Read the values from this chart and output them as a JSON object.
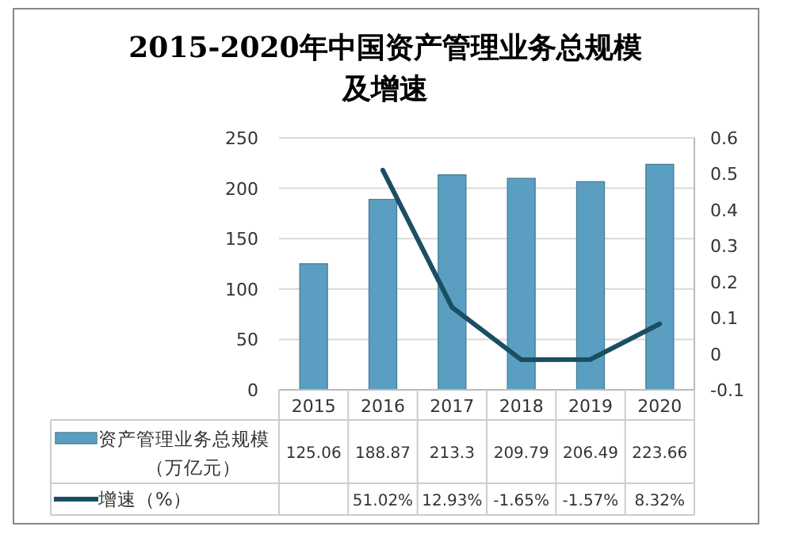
{
  "chart_data": {
    "type": "bar",
    "title": "2015-2020年中国资产管理业务总规模及增速",
    "categories": [
      "2015",
      "2016",
      "2017",
      "2018",
      "2019",
      "2020"
    ],
    "series": [
      {
        "name": "资产管理业务总规模（万亿元）",
        "color": "#5a9fc2",
        "values": [
          125.06,
          188.87,
          213.3,
          209.79,
          206.49,
          223.66
        ],
        "value_labels": [
          "125.06",
          "188.87",
          "213.3",
          "209.79",
          "206.49",
          "223.66"
        ]
      },
      {
        "name": "增速（%）",
        "type": "line",
        "axis": "y2",
        "color": "#1a4f63",
        "values": [
          null,
          0.5102,
          0.1293,
          -0.0165,
          -0.0157,
          0.0832
        ],
        "value_labels": [
          null,
          "51.02%",
          "12.93%",
          "-1.65%",
          "-1.57%",
          "8.32%"
        ]
      }
    ],
    "ylim": [
      0,
      250
    ],
    "yticks": [
      0,
      50,
      100,
      150,
      200,
      250
    ],
    "y2lim": [
      -0.1,
      0.6
    ],
    "y2ticks": [
      -0.1,
      0,
      0.1,
      0.2,
      0.3,
      0.4,
      0.5,
      0.6
    ],
    "grid": "y",
    "legend": "bottom"
  }
}
